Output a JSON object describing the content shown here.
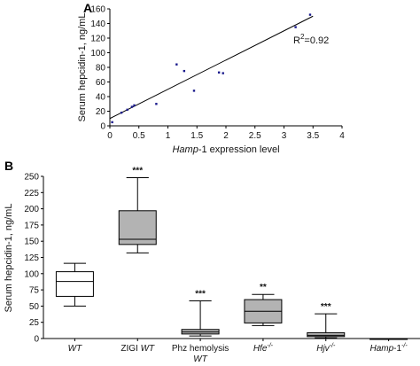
{
  "chart_data": [
    {
      "panel_label": "A",
      "type": "scatter",
      "xlabel_italic_part": "Hamp",
      "xlabel_rest": "-1 expression level",
      "ylabel": "Serum hepcidin-1, ng/mL",
      "xlim": [
        0,
        4
      ],
      "ylim": [
        0,
        160
      ],
      "xticks": [
        "0",
        "0.5",
        "1",
        "1.5",
        "2",
        "2.5",
        "3",
        "3.5",
        "4"
      ],
      "yticks": [
        "0",
        "20",
        "40",
        "60",
        "80",
        "100",
        "120",
        "140",
        "160"
      ],
      "r2_label_base": "R",
      "r2_label_sup": "2",
      "r2_label_value": "=0.92",
      "points": [
        {
          "x": 0.04,
          "y": 5
        },
        {
          "x": 0.2,
          "y": 18
        },
        {
          "x": 0.3,
          "y": 22
        },
        {
          "x": 0.38,
          "y": 26
        },
        {
          "x": 0.42,
          "y": 28
        },
        {
          "x": 0.8,
          "y": 30
        },
        {
          "x": 1.15,
          "y": 84
        },
        {
          "x": 1.28,
          "y": 75
        },
        {
          "x": 1.45,
          "y": 48
        },
        {
          "x": 1.88,
          "y": 73
        },
        {
          "x": 1.95,
          "y": 72
        },
        {
          "x": 3.2,
          "y": 135
        },
        {
          "x": 3.45,
          "y": 152
        }
      ],
      "trendline": [
        [
          0,
          10
        ],
        [
          3.5,
          150
        ]
      ]
    },
    {
      "panel_label": "B",
      "type": "box",
      "ylabel": "Serum hepcidin-1, ng/mL",
      "ylim": [
        0,
        250
      ],
      "yticks": [
        "0",
        "25",
        "50",
        "75",
        "100",
        "125",
        "150",
        "175",
        "200",
        "225",
        "250"
      ],
      "categories": [
        {
          "line1_plain": "",
          "line1_italic": "WT",
          "line1_sup": "",
          "line2": ""
        },
        {
          "line1_plain": "ZIGI ",
          "line1_italic": "WT",
          "line1_sup": "",
          "line2": ""
        },
        {
          "line1_plain": "Phz hemolysis",
          "line1_italic": "",
          "line1_sup": "",
          "line2": "WT"
        },
        {
          "line1_plain": "",
          "line1_italic": "Hfe",
          "line1_sup": "-/-",
          "line2": ""
        },
        {
          "line1_plain": "",
          "line1_italic": "Hjv",
          "line1_sup": "-/-",
          "line2": ""
        },
        {
          "line1_plain": "",
          "line1_italic": "Hamp",
          "line1_sup": "-/-",
          "line2": "",
          "line1_rest": "-1"
        }
      ],
      "boxes": [
        {
          "min": 50,
          "q1": 65,
          "median": 88,
          "q3": 103,
          "max": 116,
          "filled": false,
          "significance": ""
        },
        {
          "min": 132,
          "q1": 145,
          "median": 153,
          "q3": 197,
          "max": 248,
          "filled": true,
          "significance": "***"
        },
        {
          "min": 4,
          "q1": 7,
          "median": 10,
          "q3": 14,
          "max": 58,
          "filled": true,
          "significance": "***"
        },
        {
          "min": 20,
          "q1": 24,
          "median": 42,
          "q3": 60,
          "max": 68,
          "filled": true,
          "significance": "**"
        },
        {
          "min": 1,
          "q1": 3,
          "median": 5,
          "q3": 9,
          "max": 38,
          "filled": true,
          "significance": "***"
        },
        {
          "min": 0,
          "q1": 0,
          "median": 0,
          "q3": 0,
          "max": 0,
          "filled": true,
          "significance": ""
        }
      ]
    }
  ],
  "colors": {
    "box_fill": "#b3b3b3",
    "box_white": "#ffffff",
    "point": "#1a1a8c",
    "line": "#000000"
  }
}
